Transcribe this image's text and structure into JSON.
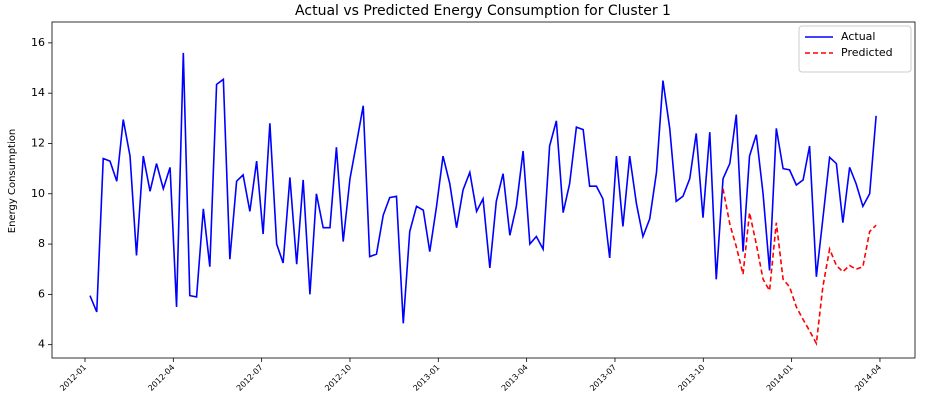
{
  "chart_data": {
    "type": "line",
    "title": "Actual vs Predicted Energy Consumption for Cluster 1",
    "y_label": "Energy Consumption",
    "x": [
      0.17,
      0.4,
      0.62,
      0.85,
      1.08,
      1.3,
      1.53,
      1.75,
      1.98,
      2.21,
      2.43,
      2.66,
      2.89,
      3.11,
      3.34,
      3.56,
      3.79,
      4.02,
      4.24,
      4.47,
      4.7,
      4.92,
      5.15,
      5.37,
      5.6,
      5.83,
      6.05,
      6.28,
      6.51,
      6.73,
      6.96,
      7.19,
      7.41,
      7.64,
      7.86,
      8.09,
      8.32,
      8.54,
      8.77,
      9.0,
      9.22,
      9.45,
      9.67,
      9.9,
      10.13,
      10.35,
      10.58,
      10.81,
      11.03,
      11.26,
      11.49,
      11.71,
      11.94,
      12.16,
      12.39,
      12.62,
      12.84,
      13.07,
      13.3,
      13.52,
      13.75,
      13.97,
      14.2,
      14.43,
      14.65,
      14.88,
      15.11,
      15.33,
      15.56,
      15.78,
      16.01,
      16.24,
      16.46,
      16.69,
      16.92,
      17.14,
      17.37,
      17.59,
      17.82,
      18.05,
      18.27,
      18.5,
      18.73,
      18.95,
      19.18,
      19.41,
      19.63,
      19.86,
      20.08,
      20.31,
      20.54,
      20.76,
      20.99,
      21.22,
      21.44,
      21.67,
      21.9,
      22.12,
      22.35,
      22.57,
      22.8,
      23.03,
      23.25,
      23.48,
      23.71,
      23.93,
      24.16,
      24.39,
      24.61,
      24.84,
      25.06,
      25.29,
      25.52,
      25.74,
      25.97,
      26.19,
      26.42,
      26.65,
      26.87
    ],
    "series": [
      {
        "name": "Actual",
        "color": "#0000ff",
        "dash": "solid",
        "values": [
          5.95,
          5.3,
          11.4,
          11.3,
          10.5,
          12.95,
          11.5,
          7.55,
          11.5,
          10.1,
          11.2,
          10.2,
          11.05,
          5.5,
          15.6,
          5.95,
          5.9,
          9.4,
          7.1,
          14.35,
          14.55,
          7.4,
          10.5,
          10.75,
          9.3,
          11.3,
          8.4,
          12.8,
          8.0,
          7.25,
          10.65,
          7.2,
          10.55,
          6.0,
          10.0,
          8.65,
          8.65,
          11.85,
          8.1,
          10.6,
          12.0,
          13.5,
          7.5,
          7.6,
          9.15,
          9.85,
          9.9,
          4.85,
          8.5,
          9.5,
          9.35,
          7.7,
          9.5,
          11.5,
          10.4,
          8.65,
          10.15,
          10.85,
          9.3,
          9.8,
          7.05,
          9.7,
          10.8,
          8.35,
          9.5,
          11.7,
          8.0,
          8.3,
          7.8,
          11.9,
          12.9,
          9.25,
          10.4,
          12.65,
          12.55,
          10.3,
          10.3,
          9.8,
          7.45,
          11.5,
          8.7,
          11.5,
          9.6,
          8.3,
          9.0,
          10.85,
          14.5,
          12.6,
          9.7,
          9.9,
          10.6,
          12.4,
          9.05,
          12.45,
          6.6,
          10.6,
          11.2,
          13.15,
          7.7,
          11.5,
          12.35,
          10.0,
          6.95,
          12.6,
          11.0,
          10.95,
          10.35,
          10.55,
          11.9,
          6.7,
          9.0,
          11.45,
          11.2,
          8.85,
          11.05,
          10.4,
          9.5,
          10.0,
          13.1
        ]
      },
      {
        "name": "Predicted",
        "color": "#ff0000",
        "dash": "dashed",
        "values": [
          null,
          null,
          null,
          null,
          null,
          null,
          null,
          null,
          null,
          null,
          null,
          null,
          null,
          null,
          null,
          null,
          null,
          null,
          null,
          null,
          null,
          null,
          null,
          null,
          null,
          null,
          null,
          null,
          null,
          null,
          null,
          null,
          null,
          null,
          null,
          null,
          null,
          null,
          null,
          null,
          null,
          null,
          null,
          null,
          null,
          null,
          null,
          null,
          null,
          null,
          null,
          null,
          null,
          null,
          null,
          null,
          null,
          null,
          null,
          null,
          null,
          null,
          null,
          null,
          null,
          null,
          null,
          null,
          null,
          null,
          null,
          null,
          null,
          null,
          null,
          null,
          null,
          null,
          null,
          null,
          null,
          null,
          null,
          null,
          null,
          null,
          null,
          null,
          null,
          null,
          null,
          null,
          null,
          null,
          null,
          10.2,
          8.8,
          7.9,
          6.8,
          9.25,
          8.0,
          6.6,
          6.15,
          8.85,
          6.6,
          6.3,
          5.5,
          5.0,
          4.55,
          4.05,
          6.3,
          7.8,
          7.15,
          6.9,
          7.15,
          7.0,
          7.1,
          8.5,
          8.75
        ]
      }
    ],
    "xlim": [
      -1.12,
      28.19
    ],
    "xticks": [
      {
        "value": 0,
        "label": "2012-01"
      },
      {
        "value": 3,
        "label": "2012-04"
      },
      {
        "value": 6,
        "label": "2012-07"
      },
      {
        "value": 9,
        "label": "2012-10"
      },
      {
        "value": 12,
        "label": "2013-01"
      },
      {
        "value": 15,
        "label": "2013-04"
      },
      {
        "value": 18,
        "label": "2013-07"
      },
      {
        "value": 21,
        "label": "2013-10"
      },
      {
        "value": 24,
        "label": "2014-01"
      },
      {
        "value": 27,
        "label": "2014-04"
      }
    ],
    "ylim": [
      3.47,
      16.83
    ],
    "yticks": [
      4,
      6,
      8,
      10,
      12,
      14,
      16
    ],
    "grid": false,
    "legend": "upper-right"
  }
}
